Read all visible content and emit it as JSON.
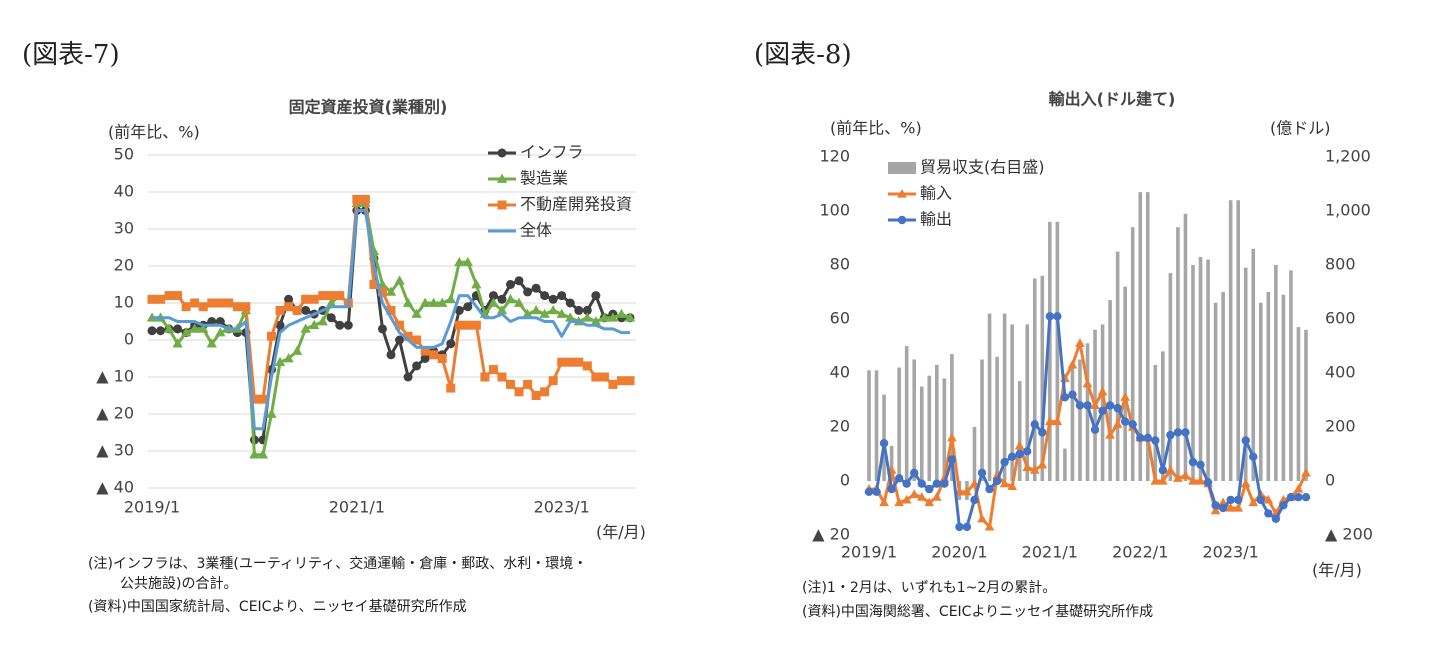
{
  "chart_data": [
    {
      "type": "line",
      "figure_label": "(図表-7)",
      "title": "固定資産投資(業種別)",
      "y_label": "(前年比、%)",
      "x_label": "(年/月)",
      "notes": [
        "(注)インフラは、3業種(ユーティリティ、交通運輸・倉庫・郵政、水利・環境・",
        "公共施設)の合計。",
        "(資料)中国国家統計局、CEICより、ニッセイ基礎研究所作成"
      ],
      "categories": [
        "2019/1",
        null,
        null,
        null,
        null,
        null,
        null,
        null,
        null,
        null,
        null,
        null,
        null,
        null,
        null,
        null,
        null,
        null,
        null,
        null,
        null,
        null,
        null,
        null,
        "2021/1",
        null,
        null,
        null,
        null,
        null,
        null,
        null,
        null,
        null,
        null,
        null,
        null,
        null,
        null,
        null,
        null,
        null,
        null,
        null,
        null,
        null,
        null,
        null,
        "2023/1",
        null,
        null,
        null,
        null,
        null,
        null,
        null,
        null
      ],
      "ylim": [
        -40,
        50
      ],
      "yticks": [
        {
          "value": -40,
          "label": "▲ 40"
        },
        {
          "value": -30,
          "label": "▲ 30"
        },
        {
          "value": -20,
          "label": "▲ 20"
        },
        {
          "value": -10,
          "label": "▲ 10"
        },
        0,
        10,
        20,
        30,
        40,
        50
      ],
      "grid": true,
      "legend": "upper right",
      "series": [
        {
          "name": "インフラ",
          "color": "#404040",
          "marker": "circle",
          "values": [
            2.5,
            2.5,
            3,
            3,
            2,
            4,
            4,
            5,
            5,
            3,
            2,
            2,
            -27,
            -27,
            -8,
            4,
            11,
            8,
            8,
            7,
            8,
            6,
            4,
            4,
            35,
            35,
            22,
            3,
            -4,
            0,
            -10,
            -7,
            -5,
            -3,
            -4,
            -1,
            8,
            9,
            12,
            8,
            12,
            11,
            15,
            16,
            13,
            14,
            12,
            11,
            12,
            10,
            8,
            8,
            12,
            6,
            7,
            6,
            6
          ]
        },
        {
          "name": "製造業",
          "color": "#70ad47",
          "marker": "triangle",
          "values": [
            6,
            6,
            3,
            -1,
            2,
            3,
            3,
            -1,
            2,
            3,
            3,
            8,
            -31,
            -31,
            -20,
            -6,
            -5,
            -3,
            3,
            4,
            5,
            10,
            12,
            10,
            37,
            37,
            24,
            15,
            13,
            16,
            10,
            7,
            10,
            10,
            10,
            11,
            21,
            21,
            15,
            7,
            10,
            8,
            11,
            10,
            7,
            8,
            7,
            8,
            7,
            6,
            5,
            6,
            5,
            6,
            6,
            7,
            6
          ]
        },
        {
          "name": "不動産開発投資",
          "color": "#ed7d31",
          "marker": "square",
          "values": [
            11,
            11,
            12,
            12,
            9,
            10,
            9,
            10,
            10,
            10,
            9,
            9,
            -16,
            -16,
            1,
            8,
            9,
            8,
            11,
            11,
            12,
            12,
            12,
            10,
            38,
            38,
            15,
            13,
            8,
            4,
            1,
            0,
            -3,
            -4,
            -5,
            -13,
            4,
            4,
            4,
            -10,
            -8,
            -10,
            -12,
            -14,
            -12,
            -15,
            -14,
            -11,
            -6,
            -6,
            -6,
            -7,
            -10,
            -10,
            -12,
            -11,
            -11
          ]
        },
        {
          "name": "全体",
          "color": "#5b9bd5",
          "values": [
            6,
            6,
            6,
            5,
            5,
            5,
            4,
            4,
            4,
            3,
            3,
            5,
            -24,
            -24,
            -10,
            2,
            4,
            5,
            6,
            7,
            8,
            9,
            9,
            9,
            35,
            35,
            20,
            10,
            6,
            2,
            0,
            -2,
            -2,
            -2,
            -1,
            5,
            12,
            12,
            9,
            6,
            6,
            7,
            5,
            6,
            6,
            6,
            5,
            5,
            1,
            5,
            5,
            4,
            4,
            3,
            3,
            2,
            2
          ]
        }
      ]
    },
    {
      "type": "combo",
      "figure_label": "(図表-8)",
      "title": "輸出入(ドル建て)",
      "y_label": "(前年比、%)",
      "y2_label": "(億ドル)",
      "x_label": "(年/月)",
      "notes": [
        "(注)1・2月は、いずれも1~2月の累計。",
        "(資料)中国海関総署、CEICよりニッセイ基礎研究所作成"
      ],
      "categories": [
        "2019/1",
        null,
        null,
        null,
        null,
        null,
        null,
        null,
        null,
        null,
        null,
        null,
        "2020/1",
        null,
        null,
        null,
        null,
        null,
        null,
        null,
        null,
        null,
        null,
        null,
        "2021/1",
        null,
        null,
        null,
        null,
        null,
        null,
        null,
        null,
        null,
        null,
        null,
        "2022/1",
        null,
        null,
        null,
        null,
        null,
        null,
        null,
        null,
        null,
        null,
        null,
        "2023/1",
        null,
        null,
        null,
        null,
        null,
        null,
        null,
        null,
        null,
        null
      ],
      "ylim": [
        -20,
        120
      ],
      "yticks": [
        {
          "value": -20,
          "label": "▲ 20"
        },
        0,
        20,
        40,
        60,
        80,
        100,
        120
      ],
      "y2lim": [
        -200,
        1200
      ],
      "y2ticks": [
        {
          "value": -200,
          "label": "▲ 200"
        },
        0,
        200,
        400,
        600,
        800,
        {
          "value": 1000,
          "label": "1,000"
        },
        {
          "value": 1200,
          "label": "1,200"
        }
      ],
      "grid": false,
      "legend": "upper left",
      "series": [
        {
          "name": "貿易収支(右目盛)",
          "color": "#a6a6a6",
          "kind": "bar",
          "axis": "y2",
          "values": [
            410,
            410,
            320,
            130,
            420,
            500,
            450,
            350,
            390,
            430,
            380,
            470,
            -70,
            -70,
            200,
            450,
            620,
            460,
            620,
            580,
            370,
            580,
            750,
            760,
            960,
            960,
            120,
            430,
            450,
            510,
            560,
            580,
            670,
            850,
            720,
            940,
            1070,
            1070,
            430,
            480,
            770,
            940,
            990,
            800,
            830,
            820,
            660,
            700,
            1040,
            1040,
            790,
            860,
            660,
            700,
            800,
            690,
            780,
            570,
            560
          ]
        },
        {
          "name": "輸入",
          "color": "#ed7d31",
          "marker": "triangle",
          "values": [
            -3,
            -3,
            -8,
            4,
            -8,
            -7,
            -5,
            -6,
            -8,
            -6,
            1,
            16,
            -4,
            -4,
            -1,
            -14,
            -17,
            2,
            -1,
            -2,
            13,
            5,
            4,
            6,
            22,
            22,
            38,
            43,
            51,
            36,
            28,
            33,
            17,
            21,
            31,
            20,
            16,
            16,
            0,
            0,
            4,
            1,
            2,
            0,
            0,
            -1,
            -11,
            -8,
            -10,
            -10,
            -1,
            -8,
            -5,
            -7,
            -12,
            -7,
            -6,
            -3,
            3
          ]
        },
        {
          "name": "輸出",
          "color": "#4472c4",
          "marker": "circle",
          "values": [
            -4,
            -4,
            14,
            -3,
            1,
            -1,
            3,
            -1,
            -3,
            -1,
            -1,
            8,
            -17,
            -17,
            -7,
            3,
            -3,
            0,
            7,
            9,
            10,
            11,
            21,
            18,
            61,
            61,
            31,
            32,
            28,
            28,
            19,
            26,
            28,
            27,
            22,
            21,
            16,
            16,
            15,
            4,
            17,
            18,
            18,
            7,
            6,
            -0.5,
            -9,
            -10,
            -7,
            -7,
            15,
            9,
            -7,
            -12,
            -14,
            -9,
            -6,
            -6,
            -6
          ]
        }
      ]
    }
  ]
}
